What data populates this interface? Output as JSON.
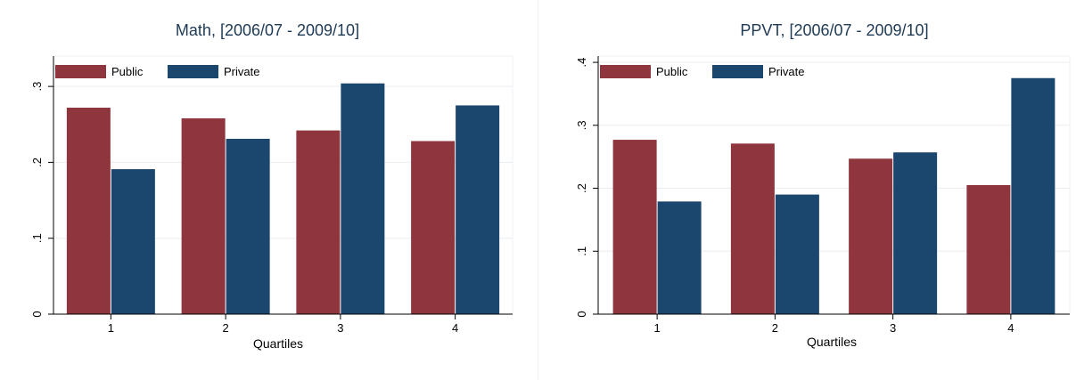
{
  "chart_data": [
    {
      "type": "bar",
      "title": "Math, [2006/07 - 2009/10]",
      "xlabel": "Quartiles",
      "ylabel": "",
      "categories": [
        "1",
        "2",
        "3",
        "4"
      ],
      "series": [
        {
          "name": "Public",
          "color": "#8e353d",
          "values": [
            0.272,
            0.258,
            0.242,
            0.228
          ]
        },
        {
          "name": "Private",
          "color": "#1b476f",
          "values": [
            0.191,
            0.231,
            0.304,
            0.275
          ]
        }
      ],
      "ylim": [
        0,
        0.34
      ],
      "yticks": [
        0,
        0.1,
        0.2,
        0.3
      ],
      "ytick_labels": [
        "0",
        ".1",
        ".2",
        ".3"
      ],
      "grid": true,
      "legend_position": "top-left"
    },
    {
      "type": "bar",
      "title": "PPVT, [2006/07 - 2009/10]",
      "xlabel": "Quartiles",
      "ylabel": "",
      "categories": [
        "1",
        "2",
        "3",
        "4"
      ],
      "series": [
        {
          "name": "Public",
          "color": "#8e353d",
          "values": [
            0.277,
            0.271,
            0.247,
            0.205
          ]
        },
        {
          "name": "Private",
          "color": "#1b476f",
          "values": [
            0.179,
            0.19,
            0.257,
            0.375
          ]
        }
      ],
      "ylim": [
        0,
        0.41
      ],
      "yticks": [
        0,
        0.1,
        0.2,
        0.3,
        0.4
      ],
      "ytick_labels": [
        "0",
        ".1",
        ".2",
        ".3",
        ".4"
      ],
      "grid": true,
      "legend_position": "top-left"
    }
  ]
}
